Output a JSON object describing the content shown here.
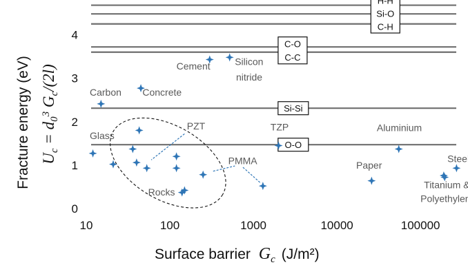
{
  "chart_data": {
    "type": "scatter",
    "x_scale": "log",
    "x_ticks": [
      "10",
      "100",
      "1000",
      "10000",
      "100000"
    ],
    "y_ticks": [
      "0",
      "1",
      "2",
      "3",
      "4"
    ],
    "xlim": [
      10,
      350000
    ],
    "ylim": [
      0,
      4.8
    ],
    "xlabel": {
      "text": "Surface barrier ",
      "symbol": "G",
      "symbol_sub": "c",
      "unit": "(J/m²)"
    },
    "ylabel": {
      "line1": "Fracture  energy (eV)",
      "formula": "U_c = d_0^3 G_c/(2l)"
    },
    "bond_lines": [
      {
        "y": 4.68,
        "label": null
      },
      {
        "y": 4.48,
        "label": null
      },
      {
        "y": 4.25,
        "label": null
      },
      {
        "y": 3.72,
        "label": null
      },
      {
        "y": 3.6,
        "label": null
      },
      {
        "y": 2.31,
        "label": "Si-Si",
        "x": 3000
      },
      {
        "y": 1.47,
        "label": "O-O",
        "x": 3000
      }
    ],
    "bond_groups": [
      {
        "labels": [
          "H-H",
          "Si-O",
          "C-H"
        ],
        "x": 38000,
        "y_top": 4.94,
        "y_bottom": 4.04
      },
      {
        "labels": [
          "C-O",
          "C-C"
        ],
        "x": 2950,
        "y_top": 3.95,
        "y_bottom": 3.33
      }
    ],
    "points": [
      {
        "x": 12,
        "y": 1.27
      },
      {
        "x": 15,
        "y": 2.41
      },
      {
        "x": 21,
        "y": 1.02
      },
      {
        "x": 36,
        "y": 1.37
      },
      {
        "x": 40,
        "y": 1.06
      },
      {
        "x": 43,
        "y": 1.8
      },
      {
        "x": 45,
        "y": 2.77
      },
      {
        "x": 53,
        "y": 0.93
      },
      {
        "x": 120,
        "y": 1.2
      },
      {
        "x": 120,
        "y": 0.93
      },
      {
        "x": 150,
        "y": 0.42
      },
      {
        "x": 250,
        "y": 0.78
      },
      {
        "x": 140,
        "y": 0.37
      },
      {
        "x": 300,
        "y": 3.43
      },
      {
        "x": 520,
        "y": 3.48
      },
      {
        "x": 1300,
        "y": 0.52
      },
      {
        "x": 2000,
        "y": 1.45
      },
      {
        "x": 26000,
        "y": 0.64
      },
      {
        "x": 55000,
        "y": 1.37
      },
      {
        "x": 190000,
        "y": 0.76
      },
      {
        "x": 195000,
        "y": 0.72
      },
      {
        "x": 270000,
        "y": 0.93
      }
    ],
    "labels": [
      {
        "text": "Carbon",
        "x": 11,
        "y": 2.6
      },
      {
        "text": "Concrete",
        "x": 47,
        "y": 2.6
      },
      {
        "text": "Cement",
        "x": 120,
        "y": 3.2
      },
      {
        "text": "Silicon",
        "x": 600,
        "y": 3.3
      },
      {
        "text": "nitride",
        "x": 620,
        "y": 2.95
      },
      {
        "text": "Glass",
        "x": 11,
        "y": 1.6
      },
      {
        "text": "PZT",
        "x": 160,
        "y": 1.82
      },
      {
        "text": "TZP",
        "x": 1600,
        "y": 1.8
      },
      {
        "text": "Aluminium",
        "x": 30000,
        "y": 1.78
      },
      {
        "text": "PMMA",
        "x": 500,
        "y": 1.02
      },
      {
        "text": "Paper",
        "x": 17000,
        "y": 0.92
      },
      {
        "text": "Steel",
        "x": 210000,
        "y": 1.07
      },
      {
        "text": "Rocks",
        "x": 55,
        "y": 0.3
      },
      {
        "text": "Titanium &",
        "x": 110000,
        "y": 0.47
      },
      {
        "text": "Polyethylene",
        "x": 100000,
        "y": 0.15
      }
    ],
    "leaders": [
      {
        "x1": 150,
        "y1": 1.72,
        "x2": 60,
        "y2": 1.12
      },
      {
        "x1": 330,
        "y1": 0.86,
        "x2": 600,
        "y2": 0.98
      },
      {
        "x1": 750,
        "y1": 0.95,
        "x2": 1200,
        "y2": 0.6
      }
    ],
    "ellipse": {
      "cx": 95,
      "cy": 1.05,
      "rx_decades": 1.22,
      "ry": 1.55,
      "angle": 30
    }
  }
}
